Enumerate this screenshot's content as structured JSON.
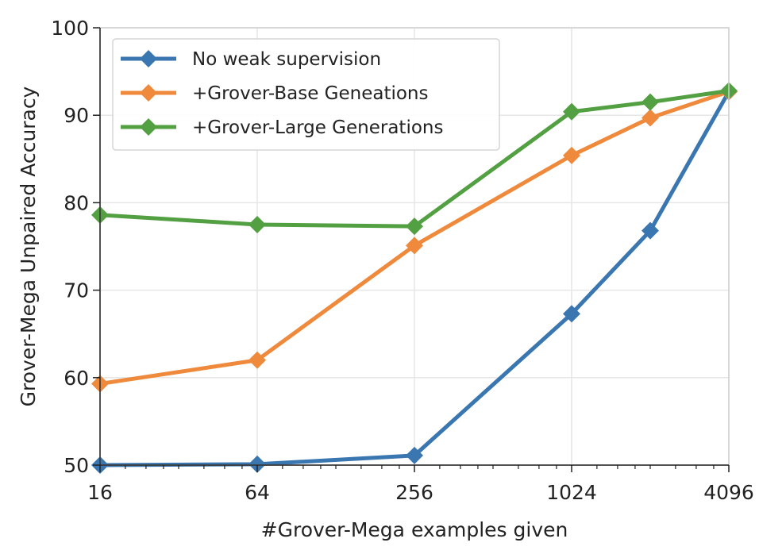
{
  "chart_data": {
    "type": "line",
    "xlabel": "#Grover-Mega examples given",
    "ylabel": "Grover-Mega Unpaired Accuracy",
    "x_scale": "log2",
    "xlim": [
      16,
      4096
    ],
    "ylim": [
      50,
      100
    ],
    "x_ticks": [
      16,
      64,
      256,
      1024,
      4096
    ],
    "x_tick_labels": [
      "16",
      "64",
      "256",
      "1024",
      "4096"
    ],
    "y_ticks": [
      50,
      60,
      70,
      80,
      90,
      100
    ],
    "y_tick_labels": [
      "50",
      "60",
      "70",
      "80",
      "90",
      "100"
    ],
    "grid": true,
    "legend_position": "top-left",
    "series": [
      {
        "name": "No weak supervision",
        "color": "#3a76b0",
        "marker": "diamond",
        "x": [
          16,
          64,
          256,
          1024,
          2048,
          4096
        ],
        "values": [
          50.0,
          50.1,
          51.1,
          67.3,
          76.8,
          92.7
        ]
      },
      {
        "name": "+Grover-Base Geneations",
        "color": "#ef8a3c",
        "marker": "diamond",
        "x": [
          16,
          64,
          256,
          1024,
          2048,
          4096
        ],
        "values": [
          59.3,
          62.0,
          75.1,
          85.4,
          89.7,
          92.7
        ]
      },
      {
        "name": "+Grover-Large Generations",
        "color": "#53a043",
        "marker": "diamond",
        "x": [
          16,
          64,
          256,
          1024,
          2048,
          4096
        ],
        "values": [
          78.6,
          77.5,
          77.3,
          90.4,
          91.5,
          92.8
        ]
      }
    ]
  }
}
